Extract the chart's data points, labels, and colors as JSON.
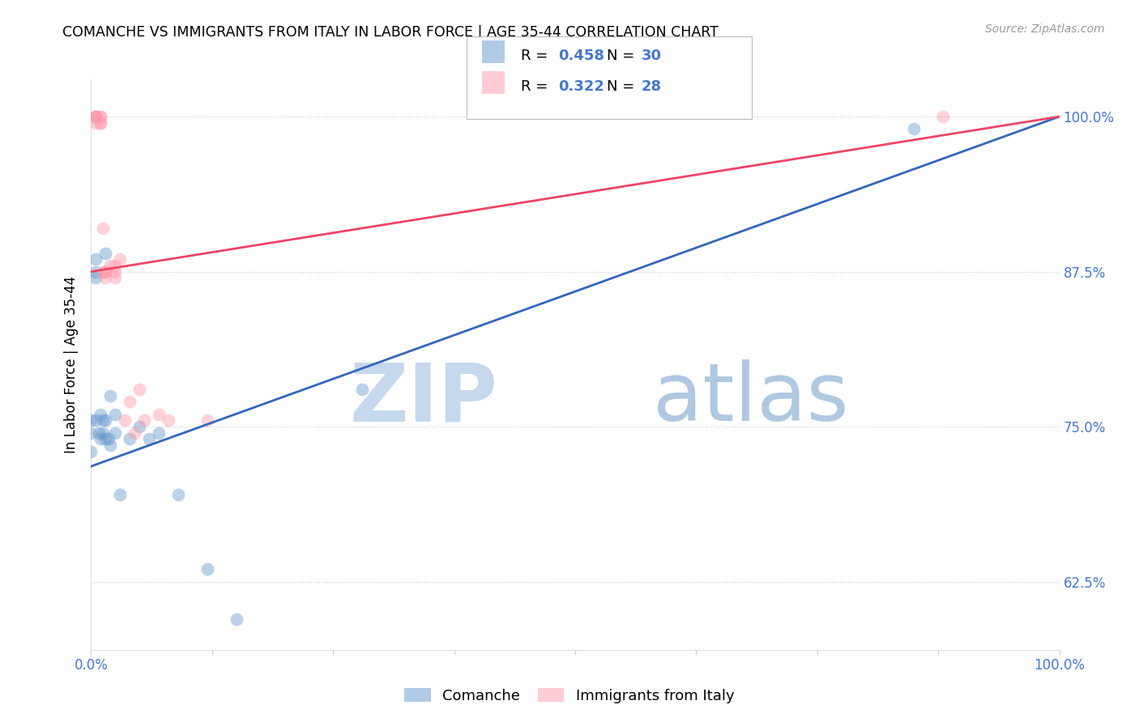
{
  "title": "COMANCHE VS IMMIGRANTS FROM ITALY IN LABOR FORCE | AGE 35-44 CORRELATION CHART",
  "source": "Source: ZipAtlas.com",
  "ylabel": "In Labor Force | Age 35-44",
  "R_comanche": 0.458,
  "N_comanche": 30,
  "R_italy": 0.322,
  "N_italy": 28,
  "comanche_color": "#6699cc",
  "italy_color": "#ff99aa",
  "trend_comanche_color": "#3366bb",
  "trend_italy_color": "#ee4466",
  "xlim": [
    0.0,
    1.0
  ],
  "ylim": [
    0.57,
    1.03
  ],
  "y_ticks": [
    0.625,
    0.75,
    0.875,
    1.0
  ],
  "y_tick_labels": [
    "62.5%",
    "75.0%",
    "87.5%",
    "100.0%"
  ],
  "comanche_x": [
    0.0,
    0.0,
    0.0,
    0.005,
    0.005,
    0.005,
    0.005,
    0.008,
    0.01,
    0.01,
    0.012,
    0.012,
    0.015,
    0.015,
    0.015,
    0.018,
    0.02,
    0.02,
    0.025,
    0.025,
    0.03,
    0.04,
    0.05,
    0.06,
    0.07,
    0.09,
    0.12,
    0.15,
    0.28,
    0.85
  ],
  "comanche_y": [
    0.755,
    0.745,
    0.73,
    0.885,
    0.875,
    0.87,
    0.755,
    0.745,
    0.76,
    0.74,
    0.755,
    0.745,
    0.89,
    0.755,
    0.74,
    0.74,
    0.775,
    0.735,
    0.745,
    0.76,
    0.695,
    0.74,
    0.75,
    0.74,
    0.745,
    0.695,
    0.635,
    0.595,
    0.78,
    0.99
  ],
  "italy_x": [
    0.005,
    0.005,
    0.005,
    0.005,
    0.005,
    0.01,
    0.01,
    0.01,
    0.01,
    0.012,
    0.012,
    0.015,
    0.015,
    0.015,
    0.02,
    0.025,
    0.025,
    0.025,
    0.03,
    0.035,
    0.04,
    0.045,
    0.05,
    0.055,
    0.07,
    0.08,
    0.12,
    0.88
  ],
  "italy_y": [
    1.0,
    1.0,
    1.0,
    1.0,
    0.995,
    1.0,
    1.0,
    0.995,
    0.995,
    0.91,
    0.875,
    0.875,
    0.875,
    0.87,
    0.88,
    0.88,
    0.875,
    0.87,
    0.885,
    0.755,
    0.77,
    0.745,
    0.78,
    0.755,
    0.76,
    0.755,
    0.755,
    1.0
  ],
  "trend_blue_x0": 0.0,
  "trend_blue_y0": 0.718,
  "trend_blue_x1": 1.0,
  "trend_blue_y1": 1.0,
  "trend_pink_x0": 0.0,
  "trend_pink_y0": 0.875,
  "trend_pink_x1": 1.0,
  "trend_pink_y1": 1.0
}
